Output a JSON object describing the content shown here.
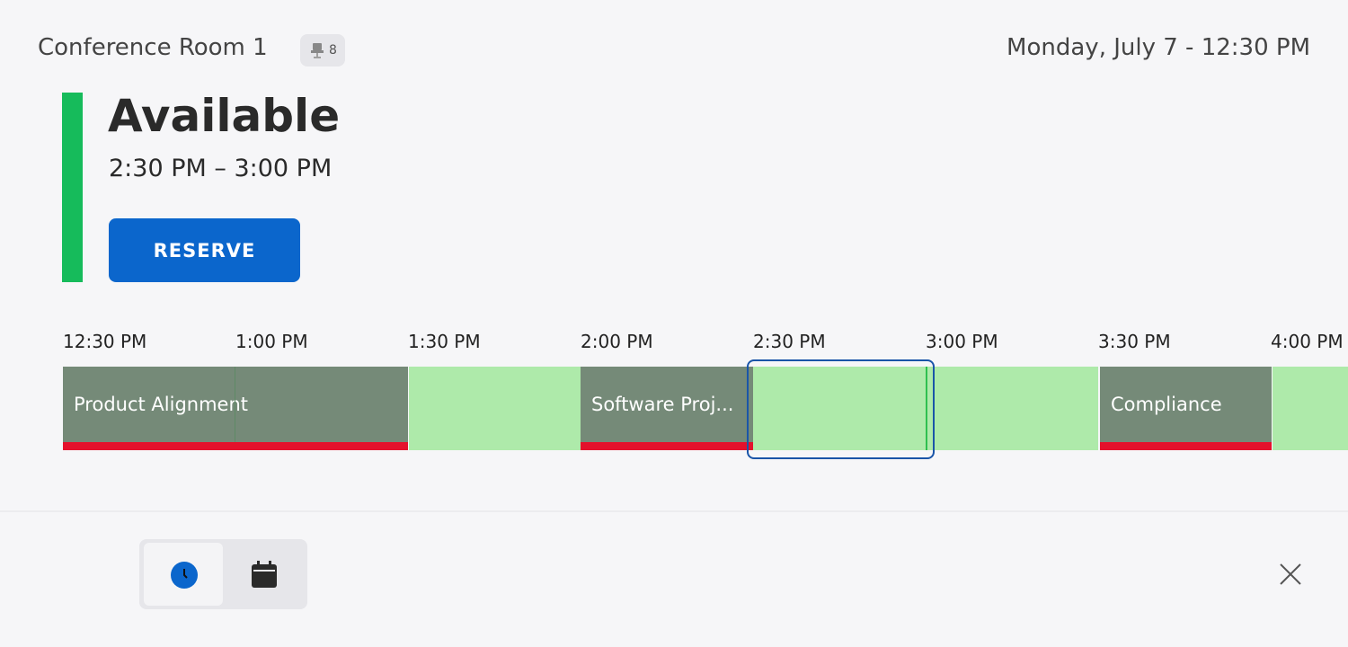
{
  "header": {
    "room": "Conference Room 1",
    "capacity": "8",
    "datetime": "Monday, July 7 - 12:30 PM"
  },
  "status": {
    "label": "Available",
    "time_range": "2:30 PM – 3:00 PM",
    "button": "RESERVE"
  },
  "timeline": {
    "times": [
      "12:30 PM",
      "1:00 PM",
      "1:30 PM",
      "2:00 PM",
      "2:30 PM",
      "3:00 PM",
      "3:30 PM",
      "4:00 PM"
    ],
    "events": [
      "Product Alignment",
      "Software Proj...",
      "Compliance"
    ]
  }
}
